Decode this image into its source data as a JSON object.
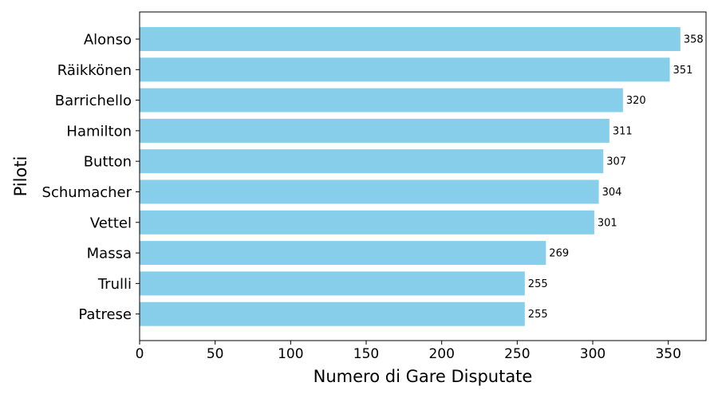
{
  "chart_data": {
    "type": "bar",
    "orientation": "horizontal",
    "categories": [
      "Alonso",
      "Räikkönen",
      "Barrichello",
      "Hamilton",
      "Button",
      "Schumacher",
      "Vettel",
      "Massa",
      "Trulli",
      "Patrese"
    ],
    "values": [
      358,
      351,
      320,
      311,
      307,
      304,
      301,
      269,
      255,
      255
    ],
    "value_labels": [
      "358",
      "351",
      "320",
      "311",
      "307",
      "304",
      "301",
      "269",
      "255",
      "255"
    ],
    "xlabel": "Numero di Gare Disputate",
    "ylabel": "Piloti",
    "xlim": [
      0,
      375
    ],
    "xticks": [
      0,
      50,
      100,
      150,
      200,
      250,
      300,
      350
    ],
    "xtick_labels": [
      "0",
      "50",
      "100",
      "150",
      "200",
      "250",
      "300",
      "350"
    ],
    "grid": false,
    "bar_color": "#87ceeb"
  }
}
